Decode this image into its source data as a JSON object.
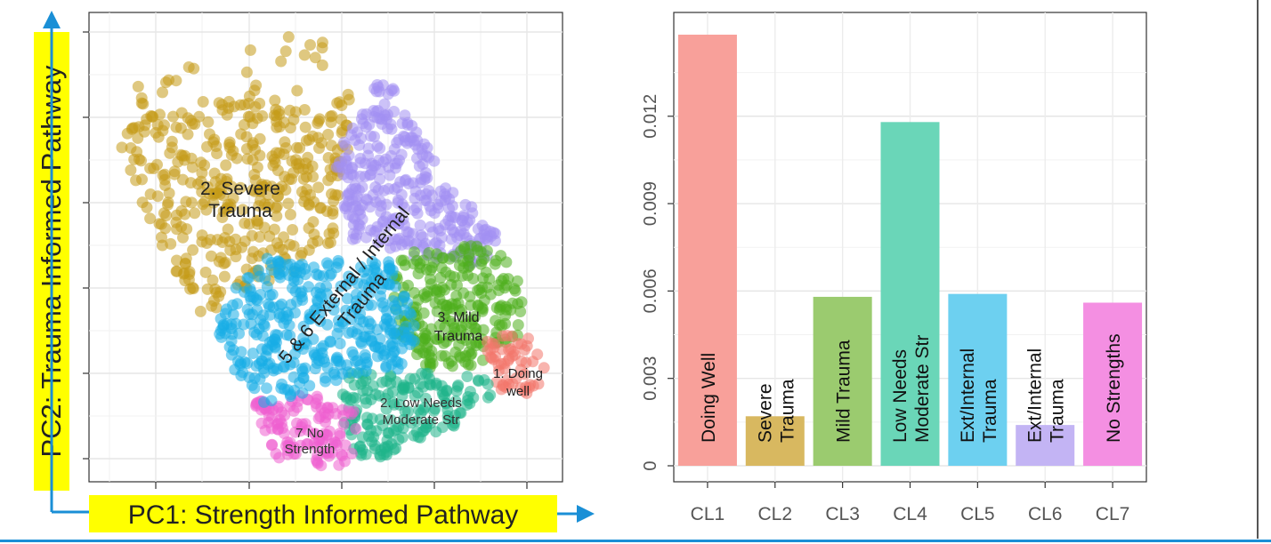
{
  "scatter": {
    "xlabel": "PC1: Strength Informed Pathway",
    "ylabel": "PC2: Trauma Informed Pathway",
    "highlight_color": "#ffff00",
    "arrow_color": "#1a8fd6",
    "clusters": [
      {
        "label": "2. Severe\nTrauma",
        "color": "#c49a18"
      },
      {
        "label": "5 & 6 External / Internal\nTrauma",
        "color": "#a28ff2"
      },
      {
        "label": "3. Mild\nTrauma",
        "color": "#4fae1d"
      },
      {
        "label": "1. Doing\nwell",
        "color": "#f2766b"
      },
      {
        "label": "2. Low Needs\nModerate Str",
        "color": "#1fb58a"
      },
      {
        "label": "7 No\nStrength",
        "color": "#ee5fd0"
      },
      {
        "label": "",
        "color": "#17ade6"
      }
    ]
  },
  "chart_data": {
    "type": "bar",
    "categories": [
      "CL1",
      "CL2",
      "CL3",
      "CL4",
      "CL5",
      "CL6",
      "CL7"
    ],
    "values": [
      0.0148,
      0.0017,
      0.0058,
      0.0118,
      0.0059,
      0.0014,
      0.0056
    ],
    "bar_labels": [
      "Doing Well",
      "Severe\nTrauma",
      "Mild Trauma",
      "Low Needs\nModerate Str",
      "Ext/Internal\nTrauma",
      "Ext/Internal\nTrauma",
      "No Strengths"
    ],
    "colors": [
      "#f8a09a",
      "#d8b860",
      "#9bcb6f",
      "#6ad6b8",
      "#6dd0f0",
      "#c3b4f4",
      "#f48fe2"
    ],
    "yticks": [
      0,
      0.003,
      0.006,
      0.009,
      0.012
    ],
    "ytick_labels": [
      "0",
      "0.003",
      "0.006",
      "0.009",
      "0.012"
    ],
    "ylim": [
      0,
      0.0153
    ],
    "grid": true
  }
}
